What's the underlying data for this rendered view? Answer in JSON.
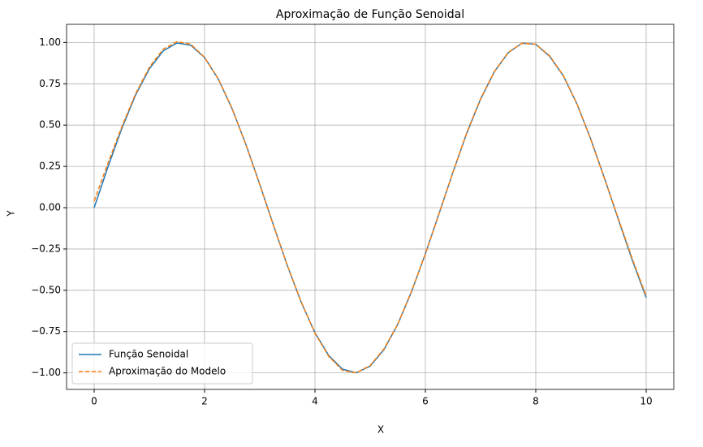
{
  "chart_data": {
    "type": "line",
    "title": "Aproximação de Função Senoidal",
    "xlabel": "X",
    "ylabel": "Y",
    "x": [
      0,
      0.25,
      0.5,
      0.75,
      1,
      1.25,
      1.5,
      1.75,
      2,
      2.25,
      2.5,
      2.75,
      3,
      3.25,
      3.5,
      3.75,
      4,
      4.25,
      4.5,
      4.75,
      5,
      5.25,
      5.5,
      5.75,
      6,
      6.25,
      6.5,
      6.75,
      7,
      7.25,
      7.5,
      7.75,
      8,
      8.25,
      8.5,
      8.75,
      9,
      9.25,
      9.5,
      9.75,
      10
    ],
    "series": [
      {
        "name": "Função Senoidal",
        "color": "#1f77b4",
        "dash": "solid",
        "values": [
          0,
          0.247,
          0.479,
          0.682,
          0.841,
          0.949,
          0.997,
          0.984,
          0.909,
          0.778,
          0.598,
          0.382,
          0.141,
          -0.108,
          -0.351,
          -0.572,
          -0.757,
          -0.895,
          -0.978,
          -0.999,
          -0.959,
          -0.859,
          -0.706,
          -0.508,
          -0.279,
          -0.033,
          0.215,
          0.451,
          0.657,
          0.823,
          0.938,
          0.996,
          0.989,
          0.917,
          0.798,
          0.625,
          0.412,
          0.174,
          -0.075,
          -0.319,
          -0.544
        ]
      },
      {
        "name": "Aproximação do Modelo",
        "color": "#ff7f0e",
        "dash": "dashed",
        "values": [
          0.04,
          0.27,
          0.49,
          0.69,
          0.85,
          0.96,
          1.005,
          0.99,
          0.91,
          0.78,
          0.6,
          0.38,
          0.14,
          -0.11,
          -0.35,
          -0.57,
          -0.76,
          -0.9,
          -0.985,
          -1.0,
          -0.955,
          -0.855,
          -0.705,
          -0.505,
          -0.28,
          -0.035,
          0.215,
          0.455,
          0.66,
          0.825,
          0.94,
          0.995,
          0.99,
          0.92,
          0.8,
          0.625,
          0.41,
          0.17,
          -0.07,
          -0.31,
          -0.535
        ]
      }
    ],
    "xlim": [
      -0.5,
      10.5
    ],
    "ylim": [
      -1.1,
      1.11
    ],
    "xticks": [
      0,
      2,
      4,
      6,
      8,
      10
    ],
    "yticks": [
      {
        "value": -1,
        "label": "−1.00"
      },
      {
        "value": -0.75,
        "label": "−0.75"
      },
      {
        "value": -0.5,
        "label": "−0.50"
      },
      {
        "value": -0.25,
        "label": "−0.25"
      },
      {
        "value": 0,
        "label": "0.00"
      },
      {
        "value": 0.25,
        "label": "0.25"
      },
      {
        "value": 0.5,
        "label": "0.50"
      },
      {
        "value": 0.75,
        "label": "0.75"
      },
      {
        "value": 1,
        "label": "1.00"
      }
    ],
    "grid": true,
    "legend": "lower-left"
  }
}
